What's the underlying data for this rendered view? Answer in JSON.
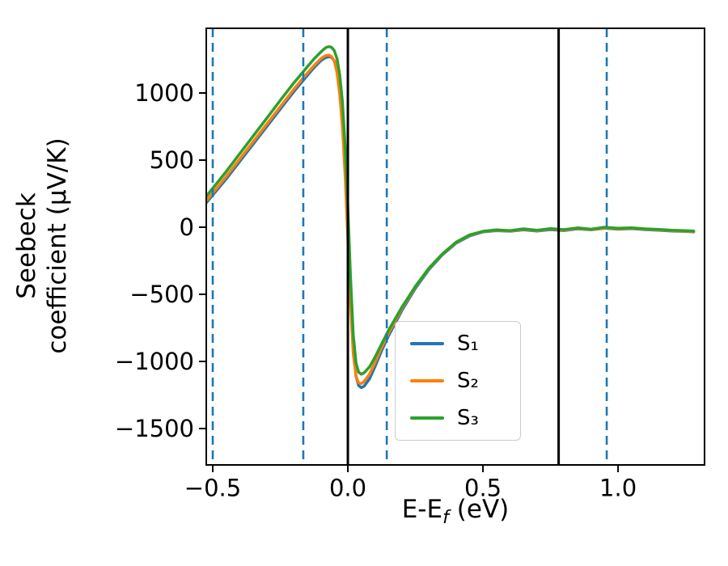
{
  "chart_data": {
    "type": "line",
    "title": "",
    "xlabel": {
      "main": "E-E",
      "sub": "f",
      "unit": " (eV)"
    },
    "ylabel": "Seebeck coefficient  (μV/K)",
    "ylabel_line1": "Seebeck",
    "ylabel_line2": "coefficient  (μV/K)",
    "xlim": [
      -0.524,
      1.32
    ],
    "ylim": [
      -1771,
      1482
    ],
    "grid": false,
    "legend_position": "lower-center-right",
    "xticks": {
      "values": [
        -0.5,
        0.0,
        0.5,
        1.0
      ],
      "labels": [
        "−0.5",
        "0.0",
        "0.5",
        "1.0"
      ]
    },
    "yticks": {
      "values": [
        -1500,
        -1000,
        -500,
        0,
        500,
        1000
      ],
      "labels": [
        "−1500",
        "−1000",
        "−500",
        "0",
        "500",
        "1000"
      ]
    },
    "x": [
      -0.55,
      -0.5,
      -0.45,
      -0.4,
      -0.35,
      -0.3,
      -0.25,
      -0.2,
      -0.15,
      -0.125,
      -0.1,
      -0.09,
      -0.08,
      -0.07,
      -0.06,
      -0.05,
      -0.04,
      -0.03,
      -0.02,
      -0.01,
      0.0,
      0.01,
      0.02,
      0.03,
      0.04,
      0.05,
      0.06,
      0.08,
      0.1,
      0.125,
      0.15,
      0.2,
      0.25,
      0.3,
      0.35,
      0.4,
      0.45,
      0.5,
      0.55,
      0.6,
      0.65,
      0.7,
      0.75,
      0.8,
      0.85,
      0.9,
      0.95,
      1.0,
      1.05,
      1.1,
      1.15,
      1.2,
      1.25,
      1.28
    ],
    "series": [
      {
        "name": "S₁",
        "color": "#1f77b4",
        "values": [
          120,
          240,
          360,
          490,
          620,
          750,
          880,
          1010,
          1130,
          1190,
          1240,
          1255,
          1265,
          1270,
          1265,
          1240,
          1170,
          1040,
          820,
          480,
          30,
          -500,
          -900,
          -1110,
          -1180,
          -1195,
          -1185,
          -1130,
          -1040,
          -920,
          -810,
          -620,
          -455,
          -315,
          -205,
          -120,
          -65,
          -35,
          -25,
          -30,
          -20,
          -28,
          -18,
          -25,
          -12,
          -20,
          -8,
          -15,
          -10,
          -18,
          -22,
          -28,
          -32,
          -35
        ]
      },
      {
        "name": "S₂",
        "color": "#ff7f0e",
        "values": [
          135,
          255,
          378,
          508,
          638,
          768,
          898,
          1028,
          1148,
          1205,
          1255,
          1270,
          1280,
          1282,
          1272,
          1238,
          1150,
          990,
          740,
          380,
          -80,
          -580,
          -940,
          -1110,
          -1160,
          -1165,
          -1150,
          -1095,
          -1010,
          -895,
          -790,
          -605,
          -445,
          -308,
          -200,
          -115,
          -60,
          -32,
          -22,
          -28,
          -15,
          -25,
          -14,
          -22,
          -8,
          -18,
          -5,
          -12,
          -8,
          -15,
          -20,
          -25,
          -30,
          -32
        ]
      },
      {
        "name": "S₃",
        "color": "#2ca02c",
        "values": [
          165,
          290,
          415,
          548,
          680,
          812,
          945,
          1075,
          1195,
          1255,
          1305,
          1325,
          1340,
          1345,
          1340,
          1315,
          1255,
          1135,
          930,
          600,
          150,
          -380,
          -800,
          -1010,
          -1080,
          -1095,
          -1085,
          -1040,
          -970,
          -870,
          -770,
          -595,
          -440,
          -305,
          -198,
          -112,
          -58,
          -30,
          -20,
          -25,
          -12,
          -22,
          -10,
          -18,
          -5,
          -15,
          0,
          -8,
          -5,
          -12,
          -16,
          -22,
          -26,
          -28
        ]
      }
    ],
    "vlines_solid": {
      "color": "#000000",
      "x": [
        0.0,
        0.78
      ]
    },
    "vlines_dashed": {
      "color": "#1f77b4",
      "x": [
        -0.5,
        -0.165,
        0.144,
        0.958
      ]
    }
  }
}
